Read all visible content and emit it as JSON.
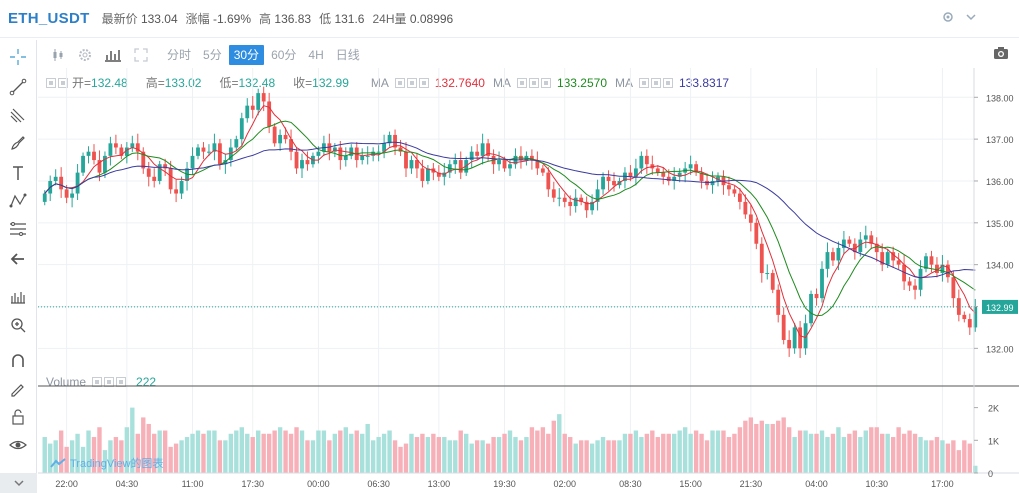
{
  "header": {
    "symbol": "ETH_USDT",
    "last_label": "最新价",
    "last_value": "133.04",
    "change_label": "涨幅",
    "change_value": "-1.69%",
    "high_label": "高",
    "high_value": "136.83",
    "low_label": "低",
    "low_value": "131.6",
    "vol_label": "24H量",
    "vol_value": "0.08996"
  },
  "toolbar": {
    "timeframes": [
      "分时",
      "5分",
      "30分",
      "60分",
      "4H",
      "日线"
    ],
    "active_timeframe": "30分"
  },
  "legend": {
    "open_label": "开=",
    "open_value": "132.48",
    "high_label": "高=",
    "high_value": "133.02",
    "low_label": "低=",
    "low_value": "132.48",
    "close_label": "收=",
    "close_value": "132.99",
    "ma_label": "MA",
    "ma_values": [
      "132.7640",
      "133.2570",
      "133.8317"
    ],
    "ma_colors": [
      "#e0303b",
      "#1e8a1e",
      "#3a3aa0"
    ]
  },
  "volume_legend": {
    "label": "Volume",
    "value": "222"
  },
  "brand": "TradingView的图表",
  "colors": {
    "up": "#26a69a",
    "down": "#ef5350",
    "up_vol": "#a8e0db",
    "down_vol": "#f7b0b8",
    "accent": "#2e8de0",
    "last_price_bg": "#26a69a"
  },
  "icons": [
    "crosshair-icon",
    "trend-line-icon",
    "pitchfork-icon",
    "brush-icon",
    "text-icon",
    "pattern-icon",
    "fib-icon",
    "back-arrow-icon",
    "ruler-icon",
    "zoom-icon",
    "magnet-icon",
    "lock-icon",
    "pencil-lock-icon",
    "eye-icon",
    "camera-icon",
    "settings-icon",
    "chevron-down-icon"
  ],
  "chart_data": {
    "type": "candlestick",
    "price_axis": {
      "ticks": [
        138.0,
        137.0,
        136.0,
        135.0,
        134.0,
        133.0,
        132.0
      ],
      "range": [
        131.0,
        138.5
      ]
    },
    "volume_axis": {
      "ticks": [
        "2K",
        "1K",
        "0"
      ],
      "range": [
        0,
        2600
      ]
    },
    "time_labels": [
      "22:00",
      "04:30",
      "11:00",
      "17:30",
      "00:00",
      "06:30",
      "13:00",
      "19:30",
      "02:00",
      "08:30",
      "15:00",
      "21:30",
      "04:00",
      "10:30",
      "17:00"
    ],
    "last_price": "132.99",
    "closes": [
      135.7,
      136.0,
      136.1,
      135.8,
      135.6,
      135.7,
      136.2,
      136.6,
      136.7,
      136.5,
      136.2,
      136.6,
      136.9,
      136.8,
      136.6,
      136.8,
      136.9,
      136.7,
      136.3,
      136.1,
      136.0,
      136.4,
      136.3,
      135.8,
      135.7,
      136.0,
      136.3,
      136.6,
      136.8,
      136.7,
      136.7,
      136.9,
      136.4,
      136.5,
      136.8,
      137.0,
      137.5,
      137.8,
      137.7,
      138.1,
      137.9,
      137.3,
      136.9,
      137.1,
      137.0,
      136.7,
      136.3,
      136.5,
      136.4,
      136.6,
      136.7,
      136.9,
      136.7,
      136.8,
      136.5,
      136.6,
      136.8,
      136.5,
      136.6,
      136.6,
      136.7,
      136.7,
      136.9,
      137.1,
      136.8,
      136.7,
      136.3,
      136.5,
      136.3,
      136.0,
      136.3,
      136.2,
      136.1,
      136.2,
      136.4,
      136.5,
      136.2,
      136.5,
      136.7,
      136.6,
      136.9,
      136.6,
      136.4,
      136.5,
      136.3,
      136.4,
      136.6,
      136.5,
      136.6,
      136.5,
      136.3,
      136.2,
      135.8,
      135.6,
      135.6,
      135.5,
      135.4,
      135.6,
      135.5,
      135.3,
      135.5,
      135.8,
      136.1,
      136.0,
      135.9,
      136.0,
      136.2,
      136.1,
      136.3,
      136.6,
      136.4,
      136.3,
      136.2,
      136.1,
      136.0,
      136.1,
      136.2,
      136.3,
      136.4,
      136.2,
      136.0,
      135.9,
      136.0,
      136.1,
      135.9,
      135.8,
      135.7,
      135.5,
      135.2,
      135.0,
      134.5,
      133.8,
      133.8,
      133.4,
      132.8,
      132.2,
      132.0,
      132.5,
      132.0,
      132.6,
      133.3,
      133.2,
      133.9,
      134.3,
      134.1,
      134.4,
      134.6,
      134.5,
      134.3,
      134.6,
      134.7,
      134.5,
      134.3,
      134.0,
      134.3,
      134.1,
      134.0,
      133.6,
      133.5,
      133.4,
      133.9,
      134.2,
      134.0,
      133.8,
      134.0,
      133.7,
      133.2,
      132.8,
      132.7,
      132.5,
      133.0
    ],
    "volumes": [
      1100,
      900,
      1000,
      1300,
      800,
      1000,
      1200,
      800,
      1300,
      1100,
      1400,
      700,
      1000,
      1100,
      1000,
      1400,
      2000,
      1200,
      1700,
      1500,
      1200,
      1300,
      1300,
      800,
      900,
      1000,
      1100,
      1200,
      1300,
      1200,
      1300,
      1300,
      1000,
      1000,
      1200,
      1300,
      1400,
      1200,
      1100,
      1300,
      1200,
      1200,
      1300,
      1400,
      1300,
      1200,
      1400,
      1300,
      1000,
      1000,
      1300,
      1300,
      1000,
      1200,
      1300,
      1400,
      1200,
      1300,
      1200,
      1500,
      1000,
      1100,
      1200,
      1300,
      1000,
      800,
      900,
      1200,
      1100,
      1200,
      1100,
      1200,
      1100,
      1100,
      1000,
      1000,
      1300,
      1200,
      900,
      1000,
      1000,
      900,
      1100,
      1100,
      1200,
      1300,
      1100,
      1000,
      1100,
      1400,
      1300,
      1400,
      1200,
      1600,
      1800,
      1200,
      1100,
      900,
      1000,
      1000,
      900,
      1000,
      1100,
      1000,
      1000,
      1000,
      1200,
      1200,
      1300,
      1100,
      1200,
      1300,
      1100,
      1200,
      1200,
      1200,
      1300,
      1400,
      1200,
      1300,
      1200,
      1000,
      1300,
      1300,
      1300,
      1100,
      1200,
      1400,
      1600,
      1700,
      1500,
      1600,
      1500,
      1500,
      1600,
      1700,
      1400,
      1100,
      1300,
      1300,
      1200,
      1200,
      1300,
      1100,
      1200,
      1400,
      1100,
      1200,
      1300,
      1100,
      1300,
      1400,
      1400,
      1200,
      1200,
      1100,
      1400,
      1200,
      1300,
      1200,
      1100,
      1000,
      1000,
      1100,
      1000,
      900,
      1000,
      700,
      1000,
      900,
      222
    ]
  }
}
